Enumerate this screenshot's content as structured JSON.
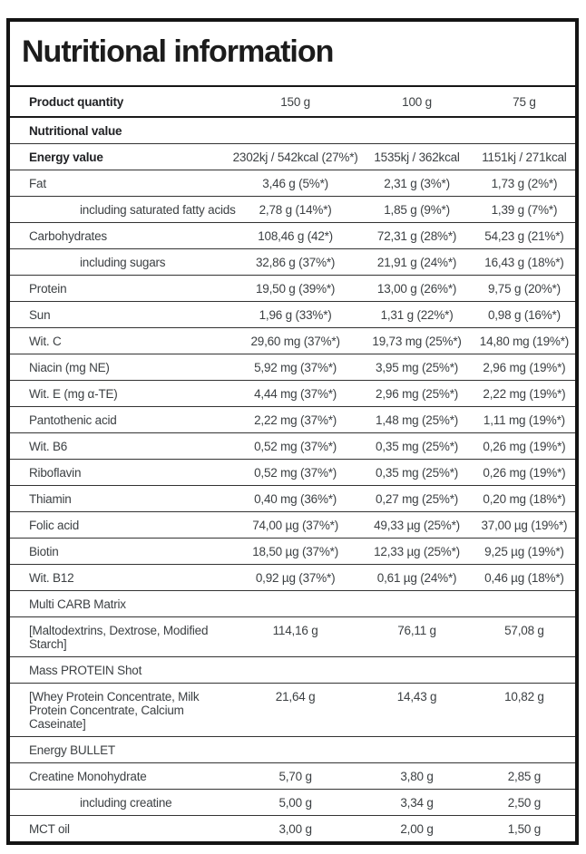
{
  "header": {
    "title": "Nutritional information"
  },
  "table": {
    "product_quantity": {
      "label": "Product quantity",
      "columns": [
        "150 g",
        "100 g",
        "75 g"
      ]
    },
    "rows": [
      {
        "label": "Nutritional value",
        "bold": true,
        "values": [
          "",
          "",
          ""
        ]
      },
      {
        "label": "Energy value",
        "bold": true,
        "values": [
          "2302kj / 542kcal (27%*)",
          "1535kj / 362kcal",
          "1151kj / 271kcal"
        ]
      },
      {
        "label": "Fat",
        "values": [
          "3,46 g (5%*)",
          "2,31 g (3%*)",
          "1,73 g (2%*)"
        ]
      },
      {
        "label": "including saturated fatty acids",
        "indent": true,
        "values": [
          "2,78 g (14%*)",
          "1,85 g (9%*)",
          "1,39 g (7%*)"
        ]
      },
      {
        "label": "Carbohydrates",
        "values": [
          "108,46 g (42*)",
          "72,31 g (28%*)",
          "54,23 g (21%*)"
        ]
      },
      {
        "label": "including sugars",
        "indent": true,
        "values": [
          "32,86 g (37%*)",
          "21,91 g (24%*)",
          "16,43 g (18%*)"
        ]
      },
      {
        "label": "Protein",
        "values": [
          "19,50 g (39%*)",
          "13,00 g (26%*)",
          "9,75 g (20%*)"
        ]
      },
      {
        "label": "Sun",
        "values": [
          "1,96 g (33%*)",
          "1,31 g (22%*)",
          "0,98 g (16%*)"
        ]
      },
      {
        "label": "Wit. C",
        "values": [
          "29,60 mg (37%*)",
          "19,73 mg (25%*)",
          "14,80 mg (19%*)"
        ]
      },
      {
        "label": "Niacin (mg NE)",
        "values": [
          "5,92 mg (37%*)",
          "3,95 mg (25%*)",
          "2,96 mg (19%*)"
        ]
      },
      {
        "label": "Wit. E (mg α-TE)",
        "values": [
          "4,44 mg (37%*)",
          "2,96 mg (25%*)",
          "2,22 mg (19%*)"
        ]
      },
      {
        "label": "Pantothenic acid",
        "values": [
          "2,22 mg (37%*)",
          "1,48 mg (25%*)",
          "1,11 mg (19%*)"
        ]
      },
      {
        "label": "Wit. B6",
        "values": [
          "0,52 mg (37%*)",
          "0,35 mg (25%*)",
          "0,26 mg (19%*)"
        ]
      },
      {
        "label": "Riboflavin",
        "values": [
          "0,52 mg (37%*)",
          "0,35 mg (25%*)",
          "0,26 mg (19%*)"
        ]
      },
      {
        "label": "Thiamin",
        "values": [
          "0,40 mg (36%*)",
          "0,27 mg (25%*)",
          "0,20 mg (18%*)"
        ]
      },
      {
        "label": "Folic acid",
        "values": [
          "74,00 µg (37%*)",
          "49,33 µg (25%*)",
          "37,00 µg (19%*)"
        ]
      },
      {
        "label": "Biotin",
        "values": [
          "18,50 µg (37%*)",
          "12,33 µg (25%*)",
          "9,25 µg (19%*)"
        ]
      },
      {
        "label": "Wit. B12",
        "values": [
          "0,92 µg (37%*)",
          "0,61 µg (24%*)",
          "0,46 µg (18%*)"
        ]
      },
      {
        "label": "Multi CARB Matrix",
        "values": [
          "",
          "",
          ""
        ]
      },
      {
        "label": "[Maltodextrins, Dextrose, Modified Starch]",
        "values": [
          "114,16 g",
          "76,11 g",
          "57,08 g"
        ]
      },
      {
        "label": "Mass PROTEIN Shot",
        "values": [
          "",
          "",
          ""
        ]
      },
      {
        "label": "[Whey Protein Concentrate, Milk Protein Concentrate, Calcium Caseinate]",
        "values": [
          "21,64 g",
          "14,43 g",
          "10,82 g"
        ]
      },
      {
        "label": "Energy BULLET",
        "values": [
          "",
          "",
          ""
        ]
      },
      {
        "label": "Creatine Monohydrate",
        "values": [
          "5,70 g",
          "3,80 g",
          "2,85 g"
        ]
      },
      {
        "label": "including creatine",
        "indent": true,
        "values": [
          "5,00 g",
          "3,34 g",
          "2,50 g"
        ]
      },
      {
        "label": "MCT oil",
        "values": [
          "3,00 g",
          "2,00 g",
          "1,50 g"
        ]
      }
    ]
  }
}
